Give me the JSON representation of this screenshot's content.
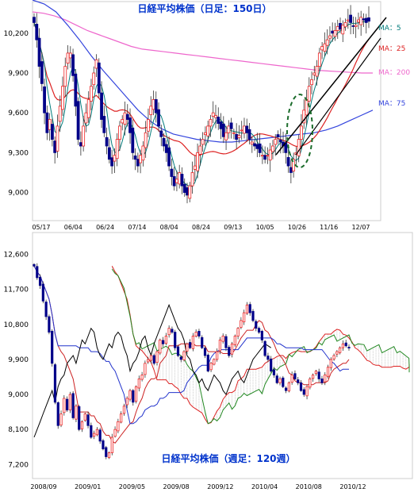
{
  "chart_data": [
    {
      "type": "candlestick",
      "title": "日経平均株価（日足：150日）",
      "ylim": [
        8800,
        10420
      ],
      "y_ticks": [
        "9,000",
        "9,300",
        "9,600",
        "9,900",
        "10,200"
      ],
      "y_tick_values": [
        9000,
        9300,
        9600,
        9900,
        10200
      ],
      "x_ticks": [
        "05/17",
        "06/04",
        "06/24",
        "07/14",
        "08/04",
        "08/24",
        "09/13",
        "10/05",
        "10/26",
        "11/16",
        "12/07"
      ],
      "close": [
        10280,
        10150,
        9950,
        9820,
        9600,
        9450,
        9550,
        9400,
        9300,
        9500,
        9650,
        9800,
        9950,
        10050,
        10050,
        9880,
        9650,
        9400,
        9350,
        9500,
        9600,
        9700,
        9800,
        9900,
        10000,
        9750,
        9550,
        9450,
        9350,
        9250,
        9200,
        9280,
        9400,
        9500,
        9550,
        9600,
        9550,
        9450,
        9300,
        9250,
        9200,
        9280,
        9350,
        9450,
        9550,
        9650,
        9700,
        9600,
        9500,
        9420,
        9350,
        9300,
        9200,
        9120,
        9050,
        9100,
        9150,
        9050,
        9000,
        8980,
        9050,
        9150,
        9200,
        9300,
        9350,
        9400,
        9450,
        9500,
        9550,
        9600,
        9580,
        9520,
        9480,
        9420,
        9450,
        9500,
        9480,
        9450,
        9400,
        9430,
        9470,
        9500,
        9450,
        9400,
        9380,
        9350,
        9330,
        9300,
        9280,
        9250,
        9280,
        9320,
        9350,
        9400,
        9420,
        9380,
        9350,
        9300,
        9200,
        9150,
        9250,
        9300,
        9400,
        9500,
        9620,
        9700,
        9800,
        9850,
        9900,
        9950,
        10050,
        10100,
        10120,
        10150,
        10180,
        10200,
        10220,
        10250,
        10230,
        10260,
        10280,
        10300,
        10280,
        10250,
        10260,
        10300,
        10320,
        10300,
        10280,
        10290
      ],
      "ma_labels": [
        "MA：5",
        "MA：25",
        "MA：200",
        "MA：75"
      ],
      "ma_colors": [
        "#007b7b",
        "#dd2222",
        "#ee66cc",
        "#3344dd"
      ],
      "ma200": [
        10360,
        10350,
        10330,
        10300,
        10260,
        10220,
        10190,
        10160,
        10130,
        10100,
        10080,
        10070,
        10060,
        10050,
        10040,
        10030,
        10020,
        10010,
        10000,
        9990,
        9980,
        9970,
        9960,
        9950,
        9940,
        9930,
        9920,
        9915,
        9910,
        9905,
        9900,
        9900
      ],
      "ma75": [
        10450,
        10420,
        10360,
        10260,
        10150,
        10030,
        9920,
        9820,
        9720,
        9620,
        9540,
        9480,
        9440,
        9420,
        9400,
        9390,
        9380,
        9380,
        9390,
        9400,
        9410,
        9420,
        9430,
        9440,
        9450,
        9470,
        9500,
        9540,
        9580,
        9620
      ]
    },
    {
      "type": "ichimoku",
      "title": "日経平均株価（週足：120週）",
      "ylim": [
        6900,
        13100
      ],
      "y_ticks": [
        "7,200",
        "8,100",
        "9,000",
        "9,900",
        "10,800",
        "11,700",
        "12,600"
      ],
      "y_tick_values": [
        7200,
        8100,
        9000,
        9900,
        10800,
        11700,
        12600
      ],
      "x_ticks": [
        "2008/09",
        "2009/01",
        "2009/05",
        "2009/08",
        "2009/12",
        "2010/04",
        "2010/08",
        "2010/12"
      ],
      "close": [
        12300,
        12000,
        11800,
        11400,
        11000,
        10600,
        9800,
        8800,
        8200,
        8500,
        8900,
        8600,
        9000,
        8400,
        8700,
        8100,
        8300,
        8500,
        8200,
        7900,
        8000,
        8100,
        7800,
        7600,
        7400,
        7500,
        7900,
        8100,
        8300,
        8500,
        8700,
        8900,
        9100,
        8800,
        9200,
        9400,
        9500,
        9800,
        9900,
        10000,
        9800,
        10100,
        10400,
        10300,
        10500,
        10700,
        10600,
        10200,
        10000,
        9900,
        10100,
        10300,
        10200,
        10500,
        10600,
        10500,
        10200,
        10000,
        9600,
        9800,
        9900,
        10100,
        10400,
        10500,
        10200,
        10000,
        10300,
        10500,
        10700,
        10900,
        11100,
        11300,
        11100,
        10900,
        10700,
        10600,
        10400,
        10000,
        9900,
        9600,
        9500,
        9300,
        9400,
        9200,
        9100,
        9300,
        9500,
        9400,
        9300,
        9100,
        9000,
        9200,
        9400,
        9500,
        9600,
        9400,
        9300,
        9500,
        9700,
        9900,
        10000,
        10100,
        10200,
        10300,
        10250,
        10200
      ]
    }
  ]
}
